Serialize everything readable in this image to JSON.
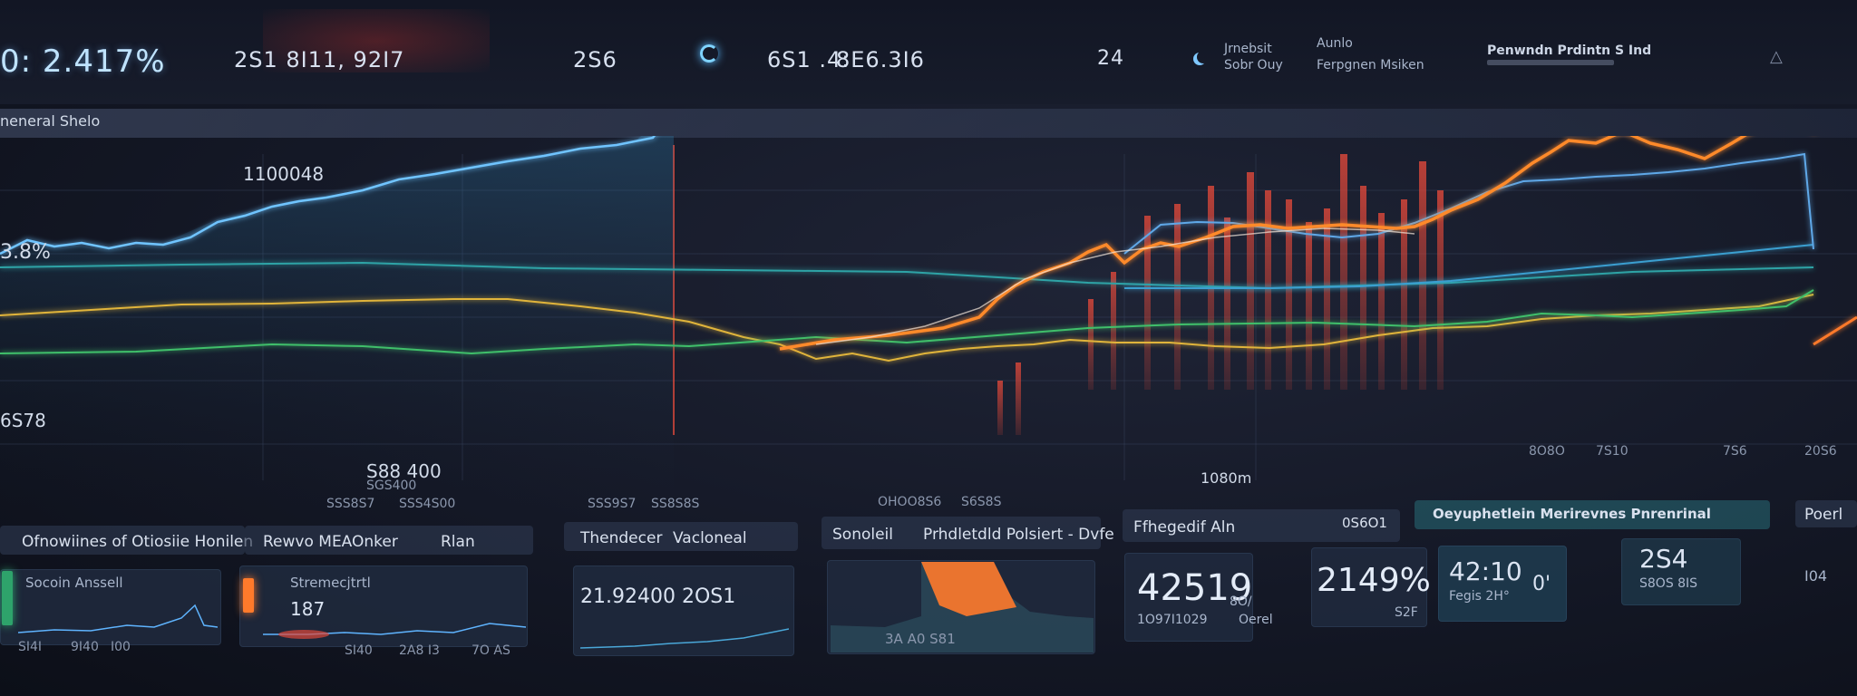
{
  "topbar": {
    "stat1": "0: 2.417%",
    "stat2": "2S1 8I11, 92I7",
    "stat3": "2S6",
    "stat4": "6S1 .4:",
    "stat5": "8E6.3I6",
    "stat6": "24",
    "stat7_line1": "Jrnebsit",
    "stat7_line2": "Sobr Ouy",
    "stat8_line1": "Aunlo",
    "stat8_line2": "Ferpgnen Msiken",
    "stat9": "Penwndn Prdintn S Ind"
  },
  "section": {
    "title": "neneral Shelo"
  },
  "chart_labels": {
    "top_value": "1100048",
    "left_pct": "3.8%",
    "left_low": "6S78",
    "mid_value": "S88 400",
    "mid_sub": "SGS400",
    "bottom_a": "SSS8S7",
    "bottom_b": "SSS4S00",
    "bottom_c": "SSS9S7",
    "bottom_d": "SS8S8S",
    "bottom_e": "OHOO8S6",
    "bottom_f": "S6S8S",
    "right_value": "1080m",
    "right_tick1": "8O8O",
    "right_tick2": "7S10",
    "right_tick3": "7S6",
    "right_tick4": "20S6"
  },
  "panels": {
    "p1": {
      "title": "Ofnowiines of Otiosiie Honilen",
      "sub": "Socoin Anssell",
      "ax1": "SI4I",
      "ax2": "9I40",
      "ax3": "I00"
    },
    "p2": {
      "title": "Rewvo MEAOnker",
      "tag": "Rlan",
      "sub": "Stremecjtrtl",
      "value": "187",
      "ax1": "SI40",
      "ax2": "2A8 I3",
      "ax3": "7O AS"
    },
    "p3": {
      "title": "Thendecer",
      "tag": "Vacloneal",
      "value": "21.92400 2OS1"
    },
    "p4": {
      "title": "Sonoleil",
      "tag": "Prhdletdld Polsiert - Dvfe",
      "value": "3A A0 S81"
    },
    "p5": {
      "title": "Ffhegedif Aln",
      "tag": "0S6O1",
      "value": "42519",
      "sub": "1O97I1029",
      "sub2": "8O/",
      "sub3": "Oerel"
    },
    "p6": {
      "value": "2149%",
      "sub": "S2F"
    },
    "p7": {
      "title": "Oeyuphetlein Merirevnes Pnrenrinal",
      "value": "42:10",
      "sub": "Fegis 2H°",
      "sub2": "0'"
    },
    "p8": {
      "value": "2S4",
      "sub": "S8OS 8IS"
    },
    "p9": {
      "title": "Poerl",
      "value": "I04"
    }
  },
  "colors": {
    "blue": "#5fb4ff",
    "teal": "#2ea3a6",
    "yellow": "#e0b43a",
    "orange": "#ff8a2b",
    "red": "#e0483a",
    "green": "#3fbf6b"
  }
}
